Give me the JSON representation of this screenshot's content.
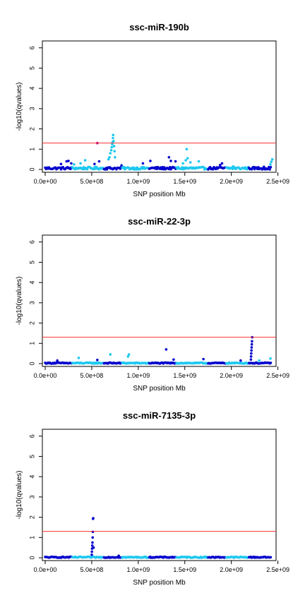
{
  "colors": {
    "dark_blue": "#0000cd",
    "light_blue": "#1ec8f0",
    "threshold_line": "#ff3030",
    "highlight": "#b0008c"
  },
  "chart_data": [
    {
      "type": "scatter",
      "title": "ssc-miR-190b",
      "xlabel": "SNP position Mb",
      "ylabel": "-log10(qvalues)",
      "xlim": [
        0,
        2450000000
      ],
      "ylim": [
        0,
        6.2
      ],
      "xticks": [
        0,
        500000000,
        1000000000,
        1500000000,
        2000000000,
        2500000000
      ],
      "xtick_labels": [
        "0.0e+00",
        "5.0e+08",
        "1.0e+09",
        "1.5e+09",
        "2.0e+09",
        "2.5e+09"
      ],
      "yticks": [
        0,
        1,
        2,
        3,
        4,
        5,
        6
      ],
      "ytick_labels": [
        "0",
        "1",
        "2",
        "3",
        "4",
        "5",
        "6"
      ],
      "threshold": 1.3,
      "grid": false,
      "points": [
        {
          "x": 170000000,
          "y": 0.27,
          "c": "dark"
        },
        {
          "x": 230000000,
          "y": 0.4,
          "c": "dark"
        },
        {
          "x": 250000000,
          "y": 0.42,
          "c": "dark"
        },
        {
          "x": 280000000,
          "y": 0.3,
          "c": "dark"
        },
        {
          "x": 310000000,
          "y": 0.25,
          "c": "light"
        },
        {
          "x": 380000000,
          "y": 0.3,
          "c": "light"
        },
        {
          "x": 430000000,
          "y": 0.45,
          "c": "light"
        },
        {
          "x": 530000000,
          "y": 0.27,
          "c": "dark"
        },
        {
          "x": 560000000,
          "y": 1.3,
          "c": "highlight"
        },
        {
          "x": 580000000,
          "y": 0.4,
          "c": "dark"
        },
        {
          "x": 680000000,
          "y": 0.5,
          "c": "light"
        },
        {
          "x": 690000000,
          "y": 0.6,
          "c": "light"
        },
        {
          "x": 700000000,
          "y": 0.8,
          "c": "light"
        },
        {
          "x": 710000000,
          "y": 0.95,
          "c": "light"
        },
        {
          "x": 715000000,
          "y": 1.1,
          "c": "light"
        },
        {
          "x": 720000000,
          "y": 1.25,
          "c": "light"
        },
        {
          "x": 725000000,
          "y": 1.35,
          "c": "light"
        },
        {
          "x": 728000000,
          "y": 1.55,
          "c": "light"
        },
        {
          "x": 730000000,
          "y": 1.7,
          "c": "light"
        },
        {
          "x": 735000000,
          "y": 1.4,
          "c": "light"
        },
        {
          "x": 740000000,
          "y": 1.15,
          "c": "light"
        },
        {
          "x": 745000000,
          "y": 0.9,
          "c": "light"
        },
        {
          "x": 750000000,
          "y": 0.6,
          "c": "light"
        },
        {
          "x": 820000000,
          "y": 0.2,
          "c": "dark"
        },
        {
          "x": 1050000000,
          "y": 0.3,
          "c": "dark"
        },
        {
          "x": 1130000000,
          "y": 0.42,
          "c": "dark"
        },
        {
          "x": 1330000000,
          "y": 0.6,
          "c": "dark"
        },
        {
          "x": 1350000000,
          "y": 0.42,
          "c": "dark"
        },
        {
          "x": 1400000000,
          "y": 0.4,
          "c": "dark"
        },
        {
          "x": 1480000000,
          "y": 0.3,
          "c": "light"
        },
        {
          "x": 1510000000,
          "y": 0.45,
          "c": "light"
        },
        {
          "x": 1530000000,
          "y": 0.55,
          "c": "light"
        },
        {
          "x": 1520000000,
          "y": 1.0,
          "c": "light"
        },
        {
          "x": 1560000000,
          "y": 0.35,
          "c": "light"
        },
        {
          "x": 1650000000,
          "y": 0.4,
          "c": "light"
        },
        {
          "x": 1880000000,
          "y": 0.22,
          "c": "dark"
        },
        {
          "x": 1900000000,
          "y": 0.3,
          "c": "dark"
        },
        {
          "x": 2020000000,
          "y": 0.15,
          "c": "light"
        },
        {
          "x": 2350000000,
          "y": 0.13,
          "c": "dark"
        },
        {
          "x": 2420000000,
          "y": 0.25,
          "c": "light"
        },
        {
          "x": 2430000000,
          "y": 0.38,
          "c": "light"
        },
        {
          "x": 2440000000,
          "y": 0.5,
          "c": "light"
        }
      ]
    },
    {
      "type": "scatter",
      "title": "ssc-miR-22-3p",
      "xlabel": "SNP position Mb",
      "ylabel": "-log10(qvalues)",
      "xlim": [
        0,
        2450000000
      ],
      "ylim": [
        0,
        6.2
      ],
      "xticks": [
        0,
        500000000,
        1000000000,
        1500000000,
        2000000000,
        2500000000
      ],
      "xtick_labels": [
        "0.0e+00",
        "5.0e+08",
        "1.0e+09",
        "1.5e+09",
        "2.0e+09",
        "2.5e+09"
      ],
      "yticks": [
        0,
        1,
        2,
        3,
        4,
        5,
        6
      ],
      "ytick_labels": [
        "0",
        "1",
        "2",
        "3",
        "4",
        "5",
        "6"
      ],
      "threshold": 1.3,
      "grid": false,
      "points": [
        {
          "x": 130000000,
          "y": 0.15,
          "c": "dark"
        },
        {
          "x": 360000000,
          "y": 0.28,
          "c": "light"
        },
        {
          "x": 560000000,
          "y": 0.18,
          "c": "dark"
        },
        {
          "x": 700000000,
          "y": 0.45,
          "c": "light"
        },
        {
          "x": 890000000,
          "y": 0.35,
          "c": "light"
        },
        {
          "x": 900000000,
          "y": 0.45,
          "c": "light"
        },
        {
          "x": 1300000000,
          "y": 0.7,
          "c": "dark"
        },
        {
          "x": 1380000000,
          "y": 0.2,
          "c": "dark"
        },
        {
          "x": 1700000000,
          "y": 0.22,
          "c": "dark"
        },
        {
          "x": 2100000000,
          "y": 0.15,
          "c": "dark"
        },
        {
          "x": 2210000000,
          "y": 0.2,
          "c": "dark"
        },
        {
          "x": 2212000000,
          "y": 0.35,
          "c": "dark"
        },
        {
          "x": 2214000000,
          "y": 0.5,
          "c": "dark"
        },
        {
          "x": 2216000000,
          "y": 0.65,
          "c": "dark"
        },
        {
          "x": 2218000000,
          "y": 0.8,
          "c": "dark"
        },
        {
          "x": 2220000000,
          "y": 0.95,
          "c": "dark"
        },
        {
          "x": 2222000000,
          "y": 1.1,
          "c": "dark"
        },
        {
          "x": 2224000000,
          "y": 1.3,
          "c": "dark"
        },
        {
          "x": 2300000000,
          "y": 0.15,
          "c": "light"
        },
        {
          "x": 2420000000,
          "y": 0.25,
          "c": "light"
        }
      ]
    },
    {
      "type": "scatter",
      "title": "ssc-miR-7135-3p",
      "xlabel": "SNP position Mb",
      "ylabel": "-log10(qvalues)",
      "xlim": [
        0,
        2450000000
      ],
      "ylim": [
        0,
        6.2
      ],
      "xticks": [
        0,
        500000000,
        1000000000,
        1500000000,
        2000000000,
        2500000000
      ],
      "xtick_labels": [
        "0.0e+00",
        "5.0e+08",
        "1.0e+09",
        "1.5e+09",
        "2.0e+09",
        "2.5e+09"
      ],
      "yticks": [
        0,
        1,
        2,
        3,
        4,
        5,
        6
      ],
      "ytick_labels": [
        "0",
        "1",
        "2",
        "3",
        "4",
        "5",
        "6"
      ],
      "threshold": 1.3,
      "grid": false,
      "points": [
        {
          "x": 500000000,
          "y": 0.15,
          "c": "dark"
        },
        {
          "x": 502000000,
          "y": 0.3,
          "c": "dark"
        },
        {
          "x": 504000000,
          "y": 0.45,
          "c": "dark"
        },
        {
          "x": 506000000,
          "y": 0.6,
          "c": "dark"
        },
        {
          "x": 508000000,
          "y": 0.75,
          "c": "dark"
        },
        {
          "x": 510000000,
          "y": 1.0,
          "c": "dark"
        },
        {
          "x": 512000000,
          "y": 1.28,
          "c": "dark"
        },
        {
          "x": 514000000,
          "y": 1.92,
          "c": "dark"
        },
        {
          "x": 516000000,
          "y": 1.95,
          "c": "dark"
        },
        {
          "x": 520000000,
          "y": 0.5,
          "c": "dark"
        },
        {
          "x": 790000000,
          "y": 0.1,
          "c": "dark"
        }
      ]
    }
  ]
}
